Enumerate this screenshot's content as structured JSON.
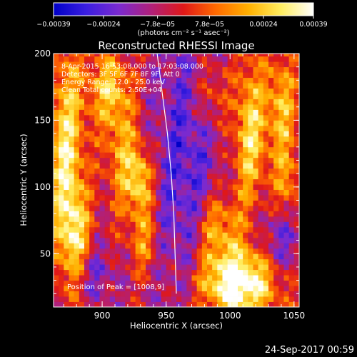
{
  "footer": {
    "timestamp": "24-Sep-2017 00:59"
  },
  "colorbar": {
    "tick_labels": [
      "−0.00039",
      "−0.00024",
      "−7.8e−05",
      "7.8e−05",
      "0.00024",
      "0.00039"
    ],
    "tick_values": [
      -0.00039,
      -0.00024,
      -7.8e-05,
      7.8e-05,
      0.00024,
      0.00039
    ],
    "range": [
      -0.00039,
      0.00039
    ],
    "units_label": "(photons cm⁻² s⁻¹ asec⁻²)",
    "colors": [
      "#0000c8",
      "#3a1ee0",
      "#7a2ad0",
      "#b0207a",
      "#e01818",
      "#ff6a00",
      "#ffb000",
      "#ffee60",
      "#ffffff"
    ]
  },
  "chart_data": {
    "type": "heatmap",
    "title": "Reconstructed RHESSI Image",
    "xlabel": "Heliocentric X (arcsec)",
    "ylabel": "Heliocentric Y (arcsec)",
    "xlim": [
      862,
      1054
    ],
    "ylim": [
      10,
      200
    ],
    "x_ticks": [
      900,
      950,
      1000,
      1050
    ],
    "y_ticks": [
      50,
      100,
      150,
      200
    ],
    "annotations": [
      "8-Apr-2015 16:53:08.000 to 17:03:08.000",
      "Detectors: 3F 5F 6F 7F 8F 9F, Att 0",
      "Energy Range: 12.0 - 25.0 keV",
      "Clean     Total counts: 2.50E+04"
    ],
    "peak_label": "Position of Peak = [1008,9]",
    "peak_position": [
      1008,
      9
    ],
    "limb_curve": [
      [
        943,
        200
      ],
      [
        947,
        170
      ],
      [
        951,
        140
      ],
      [
        954,
        110
      ],
      [
        956,
        80
      ],
      [
        957,
        50
      ],
      [
        958,
        20
      ]
    ],
    "limb_color": "#ffffff"
  }
}
